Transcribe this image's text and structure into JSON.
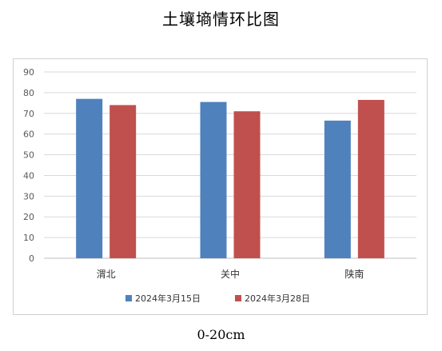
{
  "header": {
    "title": "土壤墒情环比图"
  },
  "footer": {
    "caption": "0-20cm"
  },
  "chart_data": {
    "type": "bar",
    "title": "",
    "xlabel": "",
    "ylabel": "",
    "categories": [
      "渭北",
      "关中",
      "陕南"
    ],
    "series": [
      {
        "name": "2024年3月15日",
        "values": [
          77,
          75.5,
          66.5
        ],
        "color": "#4f81bd"
      },
      {
        "name": "2024年3月28日",
        "values": [
          74,
          71,
          76.5
        ],
        "color": "#c0504d"
      }
    ],
    "ylim": [
      0,
      90
    ],
    "yticks": [
      0,
      10,
      20,
      30,
      40,
      50,
      60,
      70,
      80,
      90
    ],
    "grid": true,
    "legend_position": "bottom"
  }
}
